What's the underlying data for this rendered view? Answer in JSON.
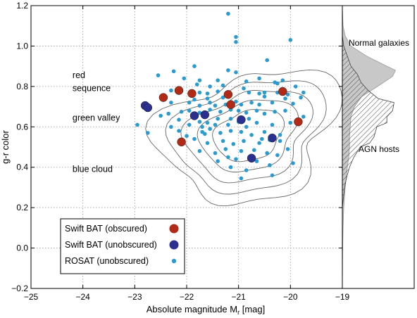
{
  "chart_data": {
    "type": "scatter",
    "xlabel": "Absolute magnitude M",
    "xlabel_sub": "r",
    "xlabel_unit": " [mag]",
    "ylabel": "g-r color",
    "xlim": [
      -25,
      -19
    ],
    "ylim": [
      -0.2,
      1.2
    ],
    "x_ticks": [
      -25,
      -24,
      -23,
      -22,
      -21,
      -20,
      -19
    ],
    "y_ticks": [
      -0.2,
      0.0,
      0.2,
      0.4,
      0.6,
      0.8,
      1.0,
      1.2
    ],
    "grid": true,
    "legend_position": "bottom-left",
    "colors": {
      "obscured": "#b22a16",
      "unobscured": "#2b2f8f",
      "rosat": "#2a9bd0",
      "contour": "#666666",
      "normal_hist": "#c8c8c8",
      "agn_hist": "#444444"
    },
    "region_labels": [
      {
        "text": "red",
        "x": -24.2,
        "y": 0.855
      },
      {
        "text": "sequence",
        "x": -24.2,
        "y": 0.79
      },
      {
        "text": "green valley",
        "x": -24.2,
        "y": 0.645
      },
      {
        "text": "blue cloud",
        "x": -24.2,
        "y": 0.39
      }
    ],
    "series": [
      {
        "name": "Swift BAT (obscured)",
        "marker": "large-circle",
        "points": [
          [
            -22.45,
            0.745
          ],
          [
            -22.15,
            0.78
          ],
          [
            -21.9,
            0.765
          ],
          [
            -21.2,
            0.76
          ],
          [
            -21.15,
            0.71
          ],
          [
            -20.15,
            0.775
          ],
          [
            -19.85,
            0.625
          ],
          [
            -22.1,
            0.525
          ]
        ]
      },
      {
        "name": "Swift BAT (unobscured)",
        "marker": "large-circle",
        "points": [
          [
            -22.8,
            0.705
          ],
          [
            -22.75,
            0.695
          ],
          [
            -21.85,
            0.655
          ],
          [
            -21.65,
            0.66
          ],
          [
            -20.95,
            0.635
          ],
          [
            -20.75,
            0.445
          ],
          [
            -20.35,
            0.545
          ]
        ]
      },
      {
        "name": "ROSAT (unobscured)",
        "marker": "small-circle",
        "points": [
          [
            -21.2,
            1.16
          ],
          [
            -21.05,
            1.045
          ],
          [
            -21.05,
            1.02
          ],
          [
            -20.0,
            1.03
          ],
          [
            -20.45,
            0.93
          ],
          [
            -21.85,
            0.9
          ],
          [
            -22.25,
            0.875
          ],
          [
            -21.2,
            0.88
          ],
          [
            -21.05,
            0.87
          ],
          [
            -20.6,
            0.84
          ],
          [
            -20.15,
            0.83
          ],
          [
            -22.55,
            0.855
          ],
          [
            -21.75,
            0.83
          ],
          [
            -21.4,
            0.83
          ],
          [
            -20.85,
            0.825
          ],
          [
            -20.25,
            0.815
          ],
          [
            -22.3,
            0.78
          ],
          [
            -21.55,
            0.8
          ],
          [
            -21.3,
            0.805
          ],
          [
            -20.9,
            0.79
          ],
          [
            -21.75,
            0.77
          ],
          [
            -21.6,
            0.765
          ],
          [
            -21.4,
            0.775
          ],
          [
            -21.3,
            0.745
          ],
          [
            -21.6,
            0.74
          ],
          [
            -20.8,
            0.77
          ],
          [
            -20.6,
            0.765
          ],
          [
            -20.5,
            0.75
          ],
          [
            -20.25,
            0.77
          ],
          [
            -20.05,
            0.76
          ],
          [
            -19.75,
            0.77
          ],
          [
            -19.8,
            0.745
          ],
          [
            -22.3,
            0.72
          ],
          [
            -21.95,
            0.72
          ],
          [
            -21.85,
            0.735
          ],
          [
            -21.75,
            0.705
          ],
          [
            -21.55,
            0.72
          ],
          [
            -21.45,
            0.705
          ],
          [
            -21.25,
            0.71
          ],
          [
            -21.05,
            0.725
          ],
          [
            -20.95,
            0.71
          ],
          [
            -20.75,
            0.72
          ],
          [
            -20.6,
            0.71
          ],
          [
            -20.35,
            0.72
          ],
          [
            -19.95,
            0.715
          ],
          [
            -22.35,
            0.665
          ],
          [
            -22.1,
            0.675
          ],
          [
            -21.95,
            0.68
          ],
          [
            -21.75,
            0.67
          ],
          [
            -21.55,
            0.685
          ],
          [
            -21.35,
            0.675
          ],
          [
            -21.15,
            0.685
          ],
          [
            -21.0,
            0.68
          ],
          [
            -20.85,
            0.67
          ],
          [
            -20.65,
            0.68
          ],
          [
            -20.5,
            0.665
          ],
          [
            -20.3,
            0.675
          ],
          [
            -20.1,
            0.68
          ],
          [
            -22.95,
            0.61
          ],
          [
            -22.5,
            0.655
          ],
          [
            -22.15,
            0.635
          ],
          [
            -21.95,
            0.61
          ],
          [
            -21.75,
            0.625
          ],
          [
            -21.6,
            0.62
          ],
          [
            -21.4,
            0.64
          ],
          [
            -21.2,
            0.61
          ],
          [
            -21.0,
            0.625
          ],
          [
            -20.85,
            0.6
          ],
          [
            -20.65,
            0.62
          ],
          [
            -20.35,
            0.61
          ],
          [
            -22.75,
            0.57
          ],
          [
            -22.15,
            0.58
          ],
          [
            -22.0,
            0.555
          ],
          [
            -21.7,
            0.575
          ],
          [
            -21.55,
            0.59
          ],
          [
            -21.35,
            0.57
          ],
          [
            -21.15,
            0.58
          ],
          [
            -20.95,
            0.575
          ],
          [
            -20.75,
            0.56
          ],
          [
            -20.5,
            0.575
          ],
          [
            -20.2,
            0.56
          ],
          [
            -21.85,
            0.54
          ],
          [
            -21.6,
            0.52
          ],
          [
            -21.3,
            0.53
          ],
          [
            -21.1,
            0.515
          ],
          [
            -20.9,
            0.53
          ],
          [
            -20.6,
            0.52
          ],
          [
            -20.4,
            0.535
          ],
          [
            -20.2,
            0.53
          ],
          [
            -21.75,
            0.48
          ],
          [
            -21.45,
            0.47
          ],
          [
            -21.25,
            0.49
          ],
          [
            -20.95,
            0.48
          ],
          [
            -20.7,
            0.485
          ],
          [
            -20.45,
            0.47
          ],
          [
            -20.25,
            0.46
          ],
          [
            -21.4,
            0.43
          ],
          [
            -21.05,
            0.44
          ],
          [
            -20.65,
            0.43
          ],
          [
            -21.15,
            0.4
          ],
          [
            -20.85,
            0.385
          ],
          [
            -20.95,
            0.345
          ],
          [
            -20.4,
            0.41
          ],
          [
            -19.95,
            0.42
          ],
          [
            -20.35,
            0.36
          ],
          [
            -21.65,
            0.565
          ],
          [
            -20.05,
            0.49
          ],
          [
            -20.5,
            0.77
          ],
          [
            -20.0,
            0.62
          ],
          [
            -19.75,
            0.65
          ],
          [
            -21.15,
            0.64
          ],
          [
            -21.45,
            0.61
          ],
          [
            -21.7,
            0.6
          ],
          [
            -22.3,
            0.6
          ],
          [
            -20.8,
            0.64
          ],
          [
            -20.55,
            0.54
          ],
          [
            -21.2,
            0.45
          ],
          [
            -20.1,
            0.74
          ],
          [
            -21.8,
            0.81
          ],
          [
            -22.05,
            0.84
          ],
          [
            -20.3,
            0.82
          ],
          [
            -19.9,
            0.8
          ]
        ]
      }
    ],
    "histogram_labels": [
      {
        "text": "Normal galaxies",
        "y": 1.015
      },
      {
        "text": "AGN hosts",
        "y": 0.49
      }
    ],
    "histogram_normal": [
      [
        -0.2,
        0.0
      ],
      [
        0.0,
        0.005
      ],
      [
        0.1,
        0.01
      ],
      [
        0.2,
        0.02
      ],
      [
        0.3,
        0.04
      ],
      [
        0.4,
        0.07
      ],
      [
        0.45,
        0.09
      ],
      [
        0.5,
        0.1
      ],
      [
        0.55,
        0.1
      ],
      [
        0.6,
        0.11
      ],
      [
        0.65,
        0.12
      ],
      [
        0.7,
        0.17
      ],
      [
        0.75,
        0.27
      ],
      [
        0.8,
        0.49
      ],
      [
        0.85,
        0.7
      ],
      [
        0.88,
        0.74
      ],
      [
        0.9,
        0.62
      ],
      [
        0.95,
        0.34
      ],
      [
        1.0,
        0.12
      ],
      [
        1.05,
        0.04
      ],
      [
        1.1,
        0.01
      ],
      [
        1.2,
        0.0
      ]
    ],
    "histogram_agn": [
      [
        0.2,
        0.0
      ],
      [
        0.3,
        0.03
      ],
      [
        0.35,
        0.06
      ],
      [
        0.4,
        0.1
      ],
      [
        0.45,
        0.16
      ],
      [
        0.5,
        0.25
      ],
      [
        0.52,
        0.38
      ],
      [
        0.55,
        0.44
      ],
      [
        0.6,
        0.48
      ],
      [
        0.62,
        0.62
      ],
      [
        0.65,
        0.62
      ],
      [
        0.68,
        0.7
      ],
      [
        0.72,
        0.72
      ],
      [
        0.74,
        0.5
      ],
      [
        0.78,
        0.36
      ],
      [
        0.82,
        0.26
      ],
      [
        0.86,
        0.21
      ],
      [
        0.9,
        0.12
      ],
      [
        0.95,
        0.07
      ],
      [
        1.0,
        0.02
      ],
      [
        1.05,
        0.0
      ]
    ]
  }
}
